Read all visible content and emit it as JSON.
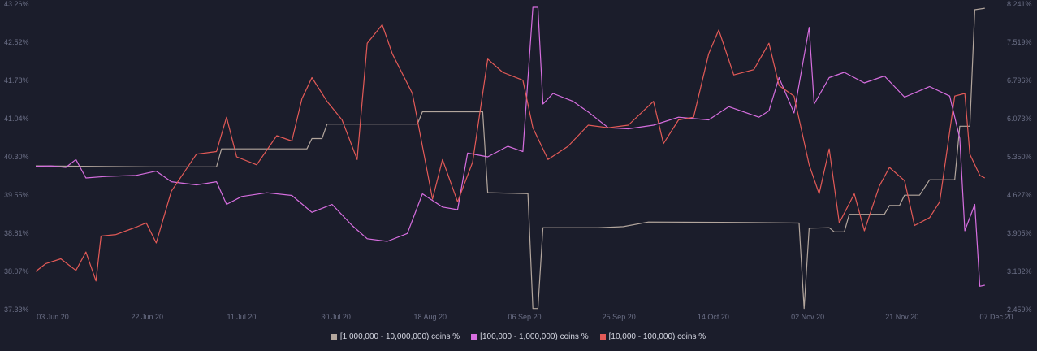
{
  "chart_data": {
    "type": "line",
    "x_ticks": [
      "03 Jun 20",
      "22 Jun 20",
      "11 Jul 20",
      "30 Jul 20",
      "18 Aug 20",
      "06 Sep 20",
      "25 Sep 20",
      "14 Oct 20",
      "02 Nov 20",
      "21 Nov 20",
      "07 Dec 20"
    ],
    "y_left": {
      "ticks": [
        "43.26%",
        "42.52%",
        "41.78%",
        "41.04%",
        "40.30%",
        "39.55%",
        "38.81%",
        "38.07%",
        "37.33%"
      ],
      "min": 37.33,
      "max": 43.26
    },
    "y_right": {
      "ticks": [
        "8.241%",
        "7.519%",
        "6.796%",
        "6.073%",
        "5.350%",
        "4.627%",
        "3.905%",
        "3.182%",
        "2.459%"
      ],
      "min": 2.459,
      "max": 8.241
    },
    "x_range": [
      "2020-05-31",
      "2020-12-07"
    ],
    "grid": false,
    "legend_position": "bottom",
    "series": [
      {
        "name": "[1,000,000 - 10,000,000) coins %",
        "color": "#b3a69d",
        "axis": "left",
        "points": [
          [
            "2020-05-31",
            40.12
          ],
          [
            "2020-06-23",
            40.1
          ],
          [
            "2020-07-06",
            40.1
          ],
          [
            "2020-07-07",
            40.45
          ],
          [
            "2020-07-24",
            40.45
          ],
          [
            "2020-07-25",
            40.65
          ],
          [
            "2020-07-27",
            40.65
          ],
          [
            "2020-07-28",
            40.93
          ],
          [
            "2020-08-15",
            40.93
          ],
          [
            "2020-08-16",
            41.17
          ],
          [
            "2020-08-28",
            41.17
          ],
          [
            "2020-08-29",
            39.6
          ],
          [
            "2020-09-06",
            39.58
          ],
          [
            "2020-09-07",
            37.35
          ],
          [
            "2020-09-08",
            37.35
          ],
          [
            "2020-09-09",
            38.92
          ],
          [
            "2020-09-20",
            38.92
          ],
          [
            "2020-09-25",
            38.94
          ],
          [
            "2020-09-30",
            39.03
          ],
          [
            "2020-10-20",
            39.02
          ],
          [
            "2020-10-30",
            39.01
          ],
          [
            "2020-10-31",
            37.35
          ],
          [
            "2020-11-01",
            38.91
          ],
          [
            "2020-11-05",
            38.92
          ],
          [
            "2020-11-06",
            38.84
          ],
          [
            "2020-11-08",
            38.84
          ],
          [
            "2020-11-09",
            39.18
          ],
          [
            "2020-11-16",
            39.18
          ],
          [
            "2020-11-17",
            39.35
          ],
          [
            "2020-11-19",
            39.35
          ],
          [
            "2020-11-20",
            39.55
          ],
          [
            "2020-11-23",
            39.55
          ],
          [
            "2020-11-25",
            39.85
          ],
          [
            "2020-11-30",
            39.85
          ],
          [
            "2020-12-01",
            40.89
          ],
          [
            "2020-12-03",
            40.89
          ],
          [
            "2020-12-04",
            43.15
          ],
          [
            "2020-12-06",
            43.18
          ]
        ]
      },
      {
        "name": "[100,000  - 1,000,000) coins %",
        "color": "#d76ee0",
        "axis": "right",
        "points": [
          [
            "2020-05-31",
            5.17
          ],
          [
            "2020-06-03",
            5.18
          ],
          [
            "2020-06-06",
            5.15
          ],
          [
            "2020-06-08",
            5.3
          ],
          [
            "2020-06-10",
            4.95
          ],
          [
            "2020-06-14",
            4.98
          ],
          [
            "2020-06-20",
            5.0
          ],
          [
            "2020-06-24",
            5.08
          ],
          [
            "2020-06-27",
            4.88
          ],
          [
            "2020-07-02",
            4.82
          ],
          [
            "2020-07-06",
            4.88
          ],
          [
            "2020-07-08",
            4.45
          ],
          [
            "2020-07-11",
            4.6
          ],
          [
            "2020-07-16",
            4.67
          ],
          [
            "2020-07-21",
            4.62
          ],
          [
            "2020-07-25",
            4.3
          ],
          [
            "2020-07-29",
            4.45
          ],
          [
            "2020-08-02",
            4.05
          ],
          [
            "2020-08-05",
            3.8
          ],
          [
            "2020-08-09",
            3.75
          ],
          [
            "2020-08-13",
            3.9
          ],
          [
            "2020-08-16",
            4.65
          ],
          [
            "2020-08-20",
            4.4
          ],
          [
            "2020-08-23",
            4.35
          ],
          [
            "2020-08-25",
            5.42
          ],
          [
            "2020-08-29",
            5.35
          ],
          [
            "2020-09-02",
            5.55
          ],
          [
            "2020-09-05",
            5.45
          ],
          [
            "2020-09-07",
            8.18
          ],
          [
            "2020-09-08",
            8.18
          ],
          [
            "2020-09-09",
            6.35
          ],
          [
            "2020-09-11",
            6.55
          ],
          [
            "2020-09-15",
            6.4
          ],
          [
            "2020-09-18",
            6.2
          ],
          [
            "2020-09-22",
            5.9
          ],
          [
            "2020-09-26",
            5.88
          ],
          [
            "2020-10-01",
            5.95
          ],
          [
            "2020-10-06",
            6.1
          ],
          [
            "2020-10-12",
            6.05
          ],
          [
            "2020-10-16",
            6.3
          ],
          [
            "2020-10-22",
            6.1
          ],
          [
            "2020-10-24",
            6.22
          ],
          [
            "2020-10-26",
            6.85
          ],
          [
            "2020-10-29",
            6.18
          ],
          [
            "2020-11-01",
            7.8
          ],
          [
            "2020-11-02",
            6.35
          ],
          [
            "2020-11-05",
            6.85
          ],
          [
            "2020-11-08",
            6.95
          ],
          [
            "2020-11-12",
            6.75
          ],
          [
            "2020-11-16",
            6.88
          ],
          [
            "2020-11-20",
            6.48
          ],
          [
            "2020-11-25",
            6.68
          ],
          [
            "2020-11-29",
            6.5
          ],
          [
            "2020-12-01",
            5.7
          ],
          [
            "2020-12-02",
            3.95
          ],
          [
            "2020-12-04",
            4.45
          ],
          [
            "2020-12-05",
            2.9
          ],
          [
            "2020-12-06",
            2.92
          ]
        ]
      },
      {
        "name": "[10,000 - 100,000) coins %",
        "color": "#e35a57",
        "axis": "right",
        "points": [
          [
            "2020-05-31",
            3.18
          ],
          [
            "2020-06-02",
            3.33
          ],
          [
            "2020-06-05",
            3.42
          ],
          [
            "2020-06-08",
            3.2
          ],
          [
            "2020-06-10",
            3.55
          ],
          [
            "2020-06-12",
            3.0
          ],
          [
            "2020-06-13",
            3.85
          ],
          [
            "2020-06-16",
            3.88
          ],
          [
            "2020-06-20",
            4.02
          ],
          [
            "2020-06-22",
            4.1
          ],
          [
            "2020-06-24",
            3.72
          ],
          [
            "2020-06-27",
            4.7
          ],
          [
            "2020-07-02",
            5.4
          ],
          [
            "2020-07-06",
            5.45
          ],
          [
            "2020-07-08",
            6.1
          ],
          [
            "2020-07-10",
            5.35
          ],
          [
            "2020-07-14",
            5.2
          ],
          [
            "2020-07-18",
            5.75
          ],
          [
            "2020-07-21",
            5.65
          ],
          [
            "2020-07-23",
            6.45
          ],
          [
            "2020-07-25",
            6.85
          ],
          [
            "2020-07-28",
            6.4
          ],
          [
            "2020-07-31",
            6.05
          ],
          [
            "2020-08-03",
            5.3
          ],
          [
            "2020-08-05",
            7.5
          ],
          [
            "2020-08-08",
            7.85
          ],
          [
            "2020-08-10",
            7.3
          ],
          [
            "2020-08-14",
            6.55
          ],
          [
            "2020-08-18",
            4.55
          ],
          [
            "2020-08-20",
            5.3
          ],
          [
            "2020-08-23",
            4.5
          ],
          [
            "2020-08-26",
            5.25
          ],
          [
            "2020-08-29",
            7.2
          ],
          [
            "2020-09-01",
            6.95
          ],
          [
            "2020-09-05",
            6.8
          ],
          [
            "2020-09-07",
            5.9
          ],
          [
            "2020-09-10",
            5.3
          ],
          [
            "2020-09-14",
            5.55
          ],
          [
            "2020-09-18",
            5.95
          ],
          [
            "2020-09-22",
            5.9
          ],
          [
            "2020-09-26",
            5.95
          ],
          [
            "2020-10-01",
            6.4
          ],
          [
            "2020-10-03",
            5.6
          ],
          [
            "2020-10-06",
            6.05
          ],
          [
            "2020-10-09",
            6.1
          ],
          [
            "2020-10-12",
            7.3
          ],
          [
            "2020-10-14",
            7.75
          ],
          [
            "2020-10-17",
            6.9
          ],
          [
            "2020-10-21",
            7.0
          ],
          [
            "2020-10-24",
            7.5
          ],
          [
            "2020-10-26",
            6.7
          ],
          [
            "2020-10-29",
            6.5
          ],
          [
            "2020-11-01",
            5.2
          ],
          [
            "2020-11-03",
            4.65
          ],
          [
            "2020-11-05",
            5.5
          ],
          [
            "2020-11-07",
            4.1
          ],
          [
            "2020-11-10",
            4.65
          ],
          [
            "2020-11-12",
            3.95
          ],
          [
            "2020-11-15",
            4.8
          ],
          [
            "2020-11-17",
            5.15
          ],
          [
            "2020-11-20",
            4.9
          ],
          [
            "2020-11-22",
            4.05
          ],
          [
            "2020-11-25",
            4.2
          ],
          [
            "2020-11-27",
            4.5
          ],
          [
            "2020-11-30",
            6.5
          ],
          [
            "2020-12-02",
            6.55
          ],
          [
            "2020-12-03",
            5.4
          ],
          [
            "2020-12-05",
            5.0
          ],
          [
            "2020-12-06",
            4.95
          ]
        ]
      }
    ]
  }
}
